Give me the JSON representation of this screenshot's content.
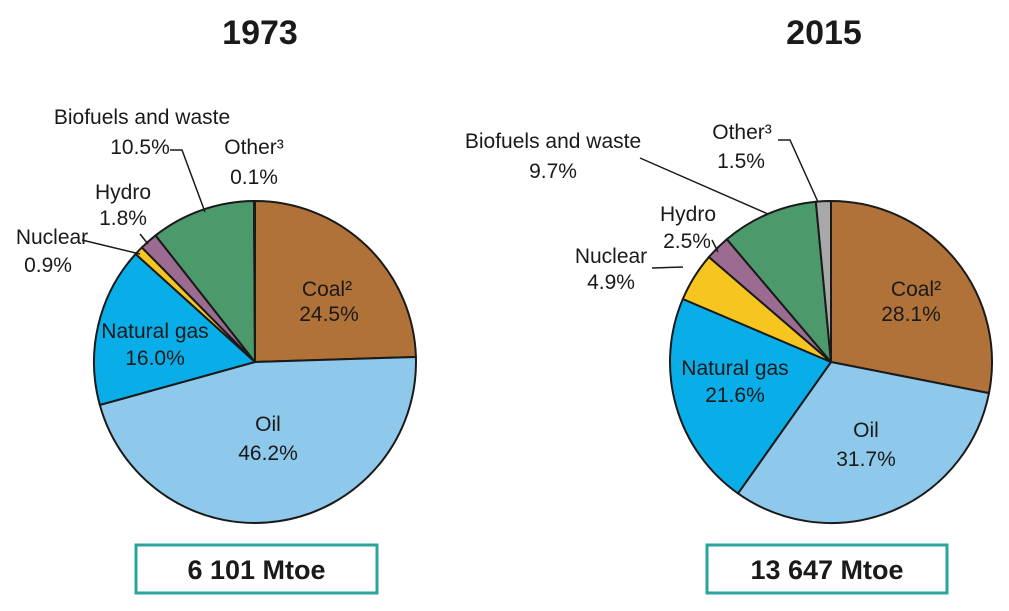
{
  "chart_data": [
    {
      "type": "pie",
      "title": "1973",
      "total_label": "6 101 Mtoe",
      "slices": [
        {
          "name": "Coal²",
          "value": 24.5,
          "value_label": "24.5%",
          "color": "#b07238"
        },
        {
          "name": "Oil",
          "value": 46.2,
          "value_label": "46.2%",
          "color": "#8ec8ea"
        },
        {
          "name": "Natural gas",
          "value": 16.0,
          "value_label": "16.0%",
          "color": "#09aee8"
        },
        {
          "name": "Nuclear",
          "value": 0.9,
          "value_label": "0.9%",
          "color": "#f6c51f"
        },
        {
          "name": "Hydro",
          "value": 1.8,
          "value_label": "1.8%",
          "color": "#9b6b92"
        },
        {
          "name": "Biofuels and waste",
          "value": 10.5,
          "value_label": "10.5%",
          "color": "#4c9a6c"
        },
        {
          "name": "Other³",
          "value": 0.1,
          "value_label": "0.1%",
          "color": "#a8a8a8"
        }
      ]
    },
    {
      "type": "pie",
      "title": "2015",
      "total_label": "13 647 Mtoe",
      "slices": [
        {
          "name": "Coal²",
          "value": 28.1,
          "value_label": "28.1%",
          "color": "#b07238"
        },
        {
          "name": "Oil",
          "value": 31.7,
          "value_label": "31.7%",
          "color": "#8ec8ea"
        },
        {
          "name": "Natural gas",
          "value": 21.6,
          "value_label": "21.6%",
          "color": "#09aee8"
        },
        {
          "name": "Nuclear",
          "value": 4.9,
          "value_label": "4.9%",
          "color": "#f6c51f"
        },
        {
          "name": "Hydro",
          "value": 2.5,
          "value_label": "2.5%",
          "color": "#9b6b92"
        },
        {
          "name": "Biofuels and waste",
          "value": 9.7,
          "value_label": "9.7%",
          "color": "#4c9a6c"
        },
        {
          "name": "Other³",
          "value": 1.5,
          "value_label": "1.5%",
          "color": "#a8a8a8"
        }
      ]
    }
  ],
  "box_border_color": "#2aa49c"
}
